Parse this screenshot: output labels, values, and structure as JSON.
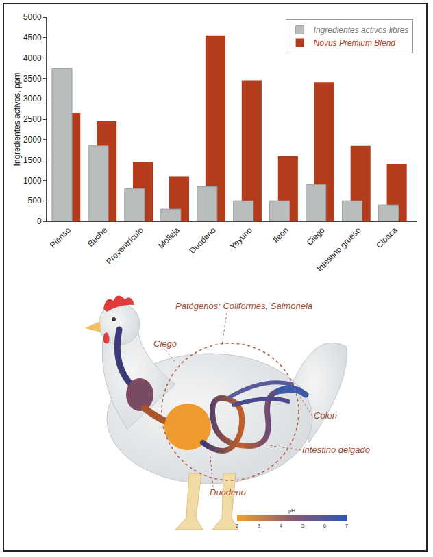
{
  "chart_data": {
    "type": "bar",
    "categories": [
      "Pienso",
      "Buche",
      "Proventrículo",
      "Molleja",
      "Duodeno",
      "Yeyuno",
      "Ileon",
      "Ciego",
      "Intestino grueso",
      "Cloaca"
    ],
    "series": [
      {
        "name": "Ingredientes activos libres",
        "color": "#b9bdbd",
        "values": [
          3750,
          1850,
          800,
          300,
          850,
          500,
          500,
          900,
          500,
          400
        ]
      },
      {
        "name": "Novus Premium Blend",
        "color": "#b23c1c",
        "values": [
          2650,
          2450,
          1450,
          1100,
          4550,
          3450,
          1600,
          3400,
          1850,
          1400
        ]
      }
    ],
    "y_label": "Ingredientes activos, ppm",
    "ylim": [
      0,
      5000
    ],
    "yticks": [
      0,
      500,
      1000,
      1500,
      2000,
      2500,
      3000,
      3500,
      4000,
      4500,
      5000
    ],
    "grid": false,
    "legend": "top right"
  },
  "diagram": {
    "labels": {
      "pathogens": "Patógenos: Coliformes, Salmonela",
      "ceca": "Ciego",
      "colon": "Colon",
      "small_intestine": "Intestino delgado",
      "duodenum": "Duodeno"
    },
    "ph_scale": {
      "title": "pH",
      "ticks": [
        2,
        3,
        4,
        5,
        6,
        7
      ]
    }
  }
}
